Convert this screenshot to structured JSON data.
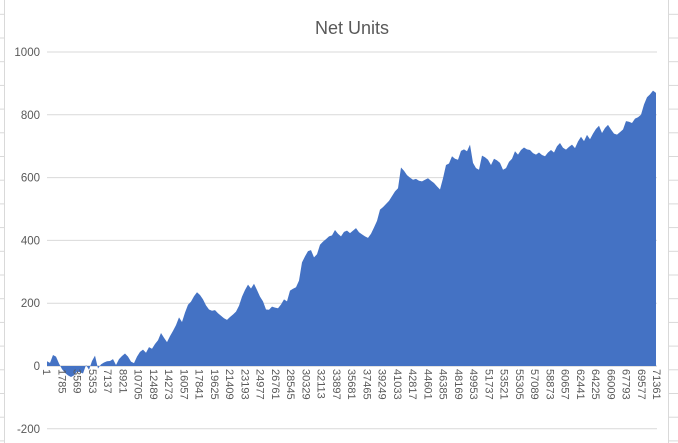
{
  "window": {
    "context": "spreadsheet-embedded-chart"
  },
  "chart": {
    "title": "Net Units",
    "colors": {
      "area_fill": "#4472C4",
      "gridline": "#D9D9D9",
      "axis_line": "#C6C6C6",
      "label_text": "#595959",
      "title_text": "#595959",
      "sheet_grid": "#D9D9D9",
      "chart_background": "#FFFFFF"
    }
  },
  "chart_data": {
    "type": "area",
    "title": "Net Units",
    "series_name": "Net Units",
    "x_start": 1,
    "x_end": 71361,
    "ylim": [
      -200,
      1000
    ],
    "grid": true,
    "legend": "none",
    "y_ticks": [
      1000,
      800,
      600,
      400,
      200,
      0,
      -200
    ],
    "x_tick_labels": [
      "1",
      "1785",
      "3569",
      "5353",
      "7137",
      "8921",
      "10705",
      "12489",
      "14273",
      "16057",
      "17841",
      "19625",
      "21409",
      "23193",
      "24977",
      "26761",
      "28545",
      "30329",
      "32113",
      "33897",
      "35681",
      "37465",
      "39249",
      "41033",
      "42817",
      "44601",
      "46385",
      "48169",
      "49953",
      "51737",
      "53521",
      "55305",
      "57089",
      "58873",
      "60657",
      "62441",
      "64225",
      "66009",
      "67793",
      "69577",
      "71361"
    ],
    "values": [
      15,
      10,
      35,
      30,
      8,
      -10,
      -22,
      -30,
      -35,
      -30,
      -18,
      -20,
      -24,
      3,
      -12,
      16,
      33,
      -8,
      5,
      11,
      15,
      16,
      22,
      3,
      22,
      32,
      40,
      30,
      14,
      9,
      30,
      45,
      52,
      42,
      60,
      55,
      70,
      82,
      105,
      90,
      76,
      95,
      112,
      130,
      155,
      140,
      170,
      195,
      205,
      222,
      235,
      226,
      212,
      193,
      180,
      176,
      178,
      168,
      160,
      152,
      147,
      156,
      164,
      173,
      192,
      221,
      242,
      259,
      247,
      262,
      242,
      221,
      206,
      180,
      179,
      189,
      186,
      184,
      196,
      212,
      206,
      240,
      246,
      251,
      272,
      330,
      349,
      366,
      369,
      346,
      356,
      386,
      396,
      404,
      413,
      416,
      433,
      421,
      413,
      427,
      431,
      423,
      431,
      439,
      426,
      419,
      413,
      408,
      421,
      441,
      462,
      498,
      506,
      516,
      526,
      541,
      556,
      566,
      632,
      622,
      608,
      600,
      593,
      596,
      590,
      588,
      593,
      598,
      590,
      583,
      572,
      562,
      598,
      640,
      645,
      668,
      660,
      657,
      685,
      690,
      684,
      705,
      647,
      630,
      625,
      670,
      665,
      657,
      640,
      660,
      655,
      647,
      625,
      630,
      650,
      660,
      684,
      673,
      688,
      696,
      690,
      688,
      678,
      673,
      680,
      672,
      668,
      680,
      688,
      680,
      700,
      710,
      695,
      689,
      698,
      705,
      694,
      715,
      730,
      716,
      736,
      722,
      740,
      755,
      765,
      742,
      758,
      768,
      753,
      740,
      737,
      745,
      753,
      780,
      778,
      774,
      788,
      792,
      800,
      833,
      856,
      865,
      877,
      870
    ]
  }
}
